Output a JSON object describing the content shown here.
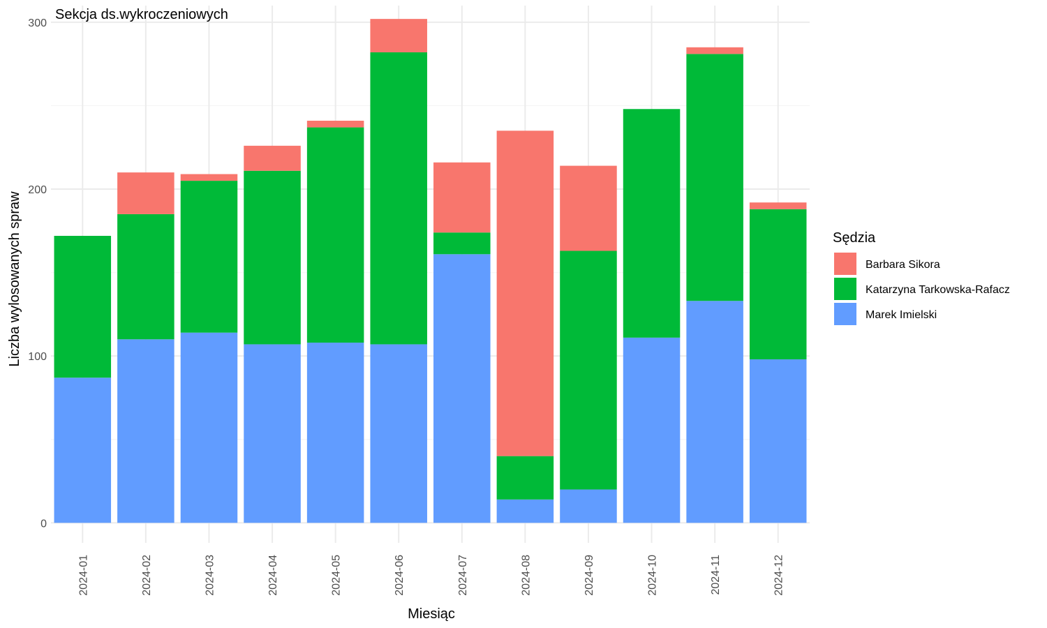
{
  "chart_data": {
    "type": "bar",
    "stacked": true,
    "title": "Sekcja ds.wykroczeniowych",
    "xlabel": "Miesiąc",
    "ylabel": "Liczba wylosowanych spraw",
    "ylim": [
      -12,
      310
    ],
    "yticks": [
      0,
      100,
      200,
      300
    ],
    "grid": true,
    "legend": {
      "title": "Sędzia",
      "position": "right"
    },
    "categories": [
      "2024-01",
      "2024-02",
      "2024-03",
      "2024-04",
      "2024-05",
      "2024-06",
      "2024-07",
      "2024-08",
      "2024-09",
      "2024-10",
      "2024-11",
      "2024-12"
    ],
    "series": [
      {
        "name": "Marek Imielski",
        "color": "#619CFF",
        "values": [
          87,
          110,
          114,
          107,
          108,
          107,
          161,
          14,
          20,
          111,
          133,
          98
        ]
      },
      {
        "name": "Katarzyna Tarkowska-Rafacz",
        "color": "#00BA38",
        "values": [
          85,
          75,
          91,
          104,
          129,
          175,
          13,
          26,
          143,
          137,
          148,
          90
        ]
      },
      {
        "name": "Barbara Sikora",
        "color": "#F8766D",
        "values": [
          0,
          25,
          4,
          15,
          4,
          20,
          42,
          195,
          51,
          0,
          4,
          4
        ]
      }
    ],
    "legend_order": [
      "Barbara Sikora",
      "Katarzyna Tarkowska-Rafacz",
      "Marek Imielski"
    ]
  }
}
